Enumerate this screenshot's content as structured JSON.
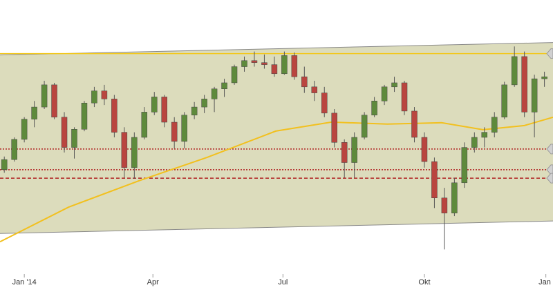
{
  "chart_data": {
    "type": "candlestick",
    "x": [
      -14,
      -7,
      0,
      7,
      14,
      21,
      28,
      35,
      42,
      49,
      56,
      63,
      70,
      77,
      84,
      91,
      98,
      105,
      112,
      119,
      126,
      133,
      140,
      147,
      154,
      161,
      168,
      175,
      182,
      189,
      196,
      203,
      210,
      217,
      224,
      231,
      238,
      245,
      252,
      259,
      266,
      273,
      280,
      287,
      294,
      301,
      308,
      315,
      322,
      329,
      336,
      343,
      350,
      357,
      364
    ],
    "open": [
      8880,
      8980,
      9180,
      9380,
      9500,
      9720,
      9400,
      9100,
      9280,
      9540,
      9660,
      9580,
      9250,
      8900,
      9200,
      9450,
      9600,
      9350,
      9160,
      9420,
      9500,
      9580,
      9680,
      9740,
      9900,
      9960,
      9940,
      9920,
      9830,
      10010,
      9800,
      9700,
      9640,
      9440,
      9150,
      8950,
      9200,
      9420,
      9560,
      9700,
      9740,
      9460,
      9200,
      8960,
      8600,
      8450,
      8750,
      9100,
      9200,
      9250,
      9400,
      9720,
      10000,
      9450,
      9780
    ],
    "high": [
      9010,
      9200,
      9400,
      9560,
      9760,
      9740,
      9450,
      9300,
      9560,
      9700,
      9720,
      9620,
      9300,
      9250,
      9500,
      9650,
      9620,
      9400,
      9450,
      9550,
      9620,
      9700,
      9780,
      9920,
      10000,
      10050,
      10020,
      10000,
      10050,
      10040,
      9900,
      9760,
      9700,
      9480,
      9180,
      9250,
      9450,
      9600,
      9720,
      9800,
      9760,
      9500,
      9250,
      9000,
      8700,
      8800,
      9150,
      9250,
      9300,
      9450,
      9750,
      10100,
      10050,
      9820,
      9850
    ],
    "low": [
      8850,
      8960,
      9150,
      9300,
      9480,
      9380,
      9050,
      8990,
      9260,
      9500,
      9520,
      9200,
      8800,
      8790,
      9180,
      9420,
      9300,
      9090,
      9090,
      9380,
      9440,
      9450,
      9600,
      9720,
      9850,
      9900,
      9880,
      9800,
      9820,
      9770,
      9640,
      9560,
      9400,
      9100,
      8800,
      8800,
      9180,
      9400,
      9520,
      9650,
      9420,
      9150,
      8900,
      8500,
      8090,
      8420,
      8700,
      9050,
      9100,
      9200,
      9380,
      9700,
      9400,
      9200,
      9700
    ],
    "close": [
      8980,
      9180,
      9380,
      9500,
      9720,
      9400,
      9100,
      9280,
      9540,
      9660,
      9580,
      9250,
      8900,
      9200,
      9450,
      9600,
      9350,
      9160,
      9420,
      9500,
      9580,
      9680,
      9740,
      9900,
      9960,
      9940,
      9920,
      9830,
      10010,
      9800,
      9700,
      9640,
      9440,
      9150,
      8950,
      9200,
      9420,
      9560,
      9700,
      9740,
      9460,
      9200,
      8960,
      8600,
      8450,
      8750,
      9100,
      9200,
      9250,
      9400,
      9720,
      10000,
      9450,
      9780,
      9800
    ],
    "up_color": "#5e8a3c",
    "down_color": "#b9453f",
    "xlim": [
      -17,
      370
    ],
    "ylim": [
      7860,
      10560
    ],
    "xticks": [
      {
        "value": 0,
        "label": "Jan '14"
      },
      {
        "value": 90,
        "label": "Apr"
      },
      {
        "value": 181,
        "label": "Jul"
      },
      {
        "value": 280,
        "label": "Okt"
      },
      {
        "value": 365,
        "label": "Jan"
      }
    ],
    "channel": {
      "x": [
        -17,
        370
      ],
      "upper": [
        10016,
        10139
      ],
      "lower": [
        8248,
        8372
      ],
      "color": "#dcdcbc"
    },
    "levels": [
      {
        "value": 10029,
        "color": "#f2c81e",
        "style": "solid"
      },
      {
        "value": 9084,
        "color": "#b02020",
        "style": "dotted"
      },
      {
        "value": 8879,
        "color": "#b02020",
        "style": "dotted"
      },
      {
        "value": 8796,
        "color": "#b02020",
        "style": "dashed"
      }
    ],
    "moving_average": {
      "x": [
        -17,
        31,
        80,
        128,
        176,
        215,
        254,
        292,
        321,
        350,
        370
      ],
      "values": [
        8166,
        8509,
        8769,
        9002,
        9262,
        9351,
        9331,
        9345,
        9276,
        9317,
        9399
      ],
      "color": "#f2c01e"
    }
  }
}
